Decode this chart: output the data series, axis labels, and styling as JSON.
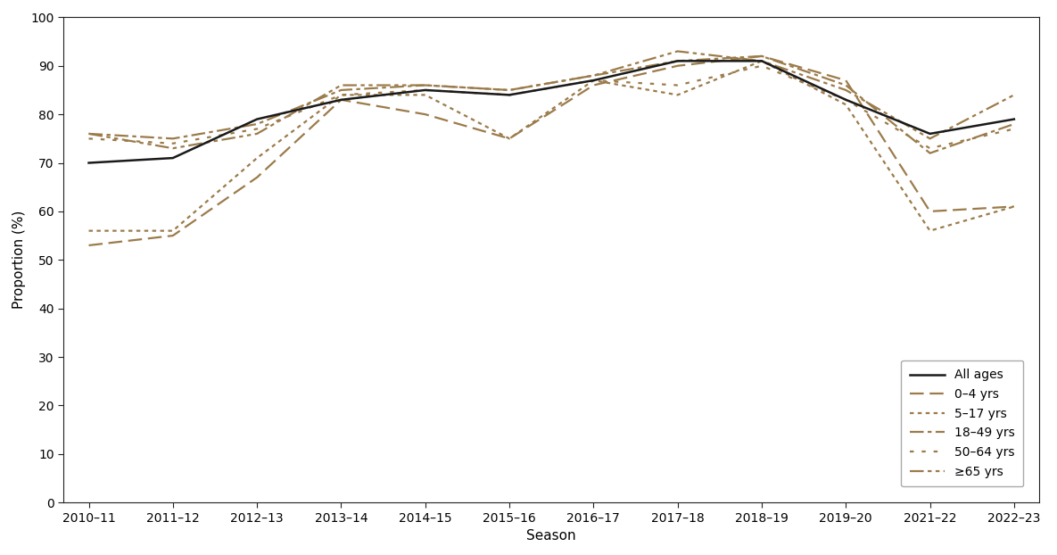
{
  "seasons": [
    "2010–11",
    "2011–12",
    "2012–13",
    "2013–14",
    "2014–15",
    "2015–16",
    "2016–17",
    "2017–18",
    "2018–19",
    "2019–20",
    "2021–22",
    "2022–23"
  ],
  "all_ages": [
    70,
    71,
    79,
    83,
    85,
    84,
    87,
    91,
    91,
    83,
    76,
    79
  ],
  "age_0_4": [
    53,
    55,
    67,
    83,
    80,
    75,
    86,
    90,
    92,
    87,
    60,
    61
  ],
  "age_5_17": [
    56,
    56,
    71,
    84,
    84,
    75,
    87,
    84,
    91,
    82,
    56,
    61
  ],
  "age_18_49": [
    76,
    75,
    78,
    85,
    86,
    85,
    88,
    91,
    92,
    86,
    72,
    78
  ],
  "age_50_64": [
    75,
    74,
    77,
    84,
    85,
    84,
    87,
    86,
    90,
    83,
    73,
    77
  ],
  "age_65p": [
    76,
    73,
    76,
    86,
    86,
    85,
    88,
    93,
    91,
    85,
    75,
    84
  ],
  "color_brown": "#9B7B4A",
  "color_black": "#1a1a1a",
  "ylabel": "Proportion (%)",
  "xlabel": "Season",
  "ylim": [
    0,
    100
  ],
  "yticks": [
    0,
    10,
    20,
    30,
    40,
    50,
    60,
    70,
    80,
    90,
    100
  ],
  "legend_labels": [
    "All ages",
    "0–4 yrs",
    "5–17 yrs",
    "18–49 yrs",
    "50–64 yrs",
    "≥65 yrs"
  ],
  "bg_color": "#ffffff"
}
